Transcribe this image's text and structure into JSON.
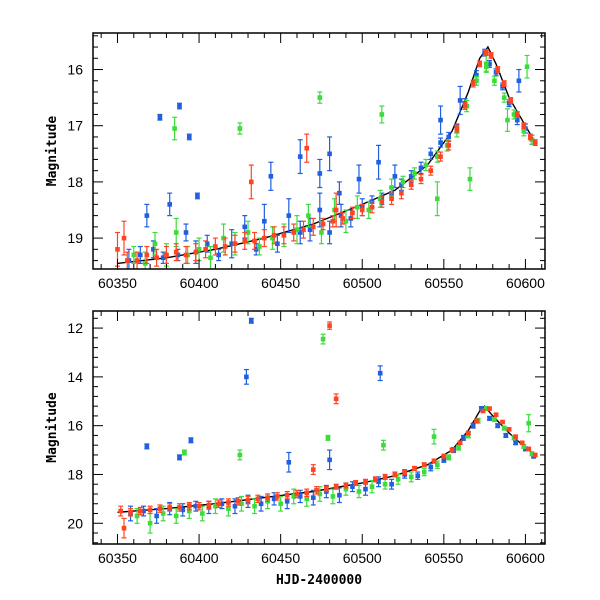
{
  "chart_data": [
    {
      "type": "scatter",
      "title": "",
      "xlabel": "",
      "ylabel": "Magnitude",
      "xlim": [
        60335,
        60612
      ],
      "ylim": [
        19.55,
        15.35
      ],
      "y_inverted": true,
      "grid": false,
      "x_ticks": [
        "60350",
        "60400",
        "60450",
        "60500",
        "60550",
        "60600"
      ],
      "y_ticks": [
        "16",
        "17",
        "18",
        "19"
      ],
      "colors": {
        "blue": "#1f5fe0",
        "green": "#3ddc3d",
        "red": "#ff4422",
        "model": "#000000"
      },
      "model_curve": {
        "x": [
          60350,
          60380,
          60410,
          60440,
          60470,
          60500,
          60520,
          60540,
          60555,
          60565,
          60572,
          60577,
          60582,
          60590,
          60600,
          60606
        ],
        "y": [
          19.45,
          19.35,
          19.2,
          19.0,
          18.75,
          18.4,
          18.15,
          17.7,
          17.1,
          16.4,
          15.8,
          15.6,
          15.9,
          16.5,
          17.0,
          17.3
        ]
      },
      "series": [
        {
          "color": "blue",
          "x": [
            60357,
            60364,
            60368,
            60372,
            60378,
            60382,
            60387,
            60392,
            60398,
            60405,
            60412,
            60420,
            60428,
            60435,
            60440,
            60448,
            60455,
            60462,
            60468,
            60474,
            60480,
            60487,
            60493,
            60500,
            60506,
            60512,
            60518,
            60524,
            60530,
            60536,
            60542,
            60548,
            60553,
            60558,
            60563,
            60570,
            60575,
            60578,
            60582,
            60586,
            60590,
            60595,
            60600,
            60604,
            60376,
            60388,
            60394,
            60399,
            60444,
            60462,
            60474,
            60480,
            60486,
            60498,
            60510,
            60520,
            60548,
            60560,
            60596
          ],
          "y": [
            19.4,
            19.3,
            18.6,
            19.2,
            19.35,
            18.4,
            19.3,
            18.9,
            19.25,
            19.1,
            19.3,
            19.1,
            18.8,
            19.2,
            18.7,
            19.1,
            18.6,
            18.9,
            18.85,
            18.5,
            18.9,
            18.6,
            18.65,
            18.45,
            18.35,
            18.3,
            18.2,
            18.05,
            17.9,
            17.75,
            17.5,
            17.3,
            17.2,
            17.05,
            16.6,
            16.1,
            15.7,
            15.9,
            16.05,
            16.3,
            16.6,
            16.9,
            17.05,
            17.25,
            16.85,
            16.65,
            17.2,
            18.25,
            17.9,
            17.55,
            17.85,
            17.5,
            18.2,
            17.95,
            17.65,
            17.9,
            16.9,
            16.55,
            16.2
          ],
          "err": [
            0.2,
            0.15,
            0.2,
            0.15,
            0.1,
            0.2,
            0.1,
            0.15,
            0.2,
            0.15,
            0.1,
            0.25,
            0.2,
            0.1,
            0.3,
            0.15,
            0.3,
            0.2,
            0.2,
            0.3,
            0.2,
            0.2,
            0.15,
            0.15,
            0.1,
            0.1,
            0.1,
            0.1,
            0.1,
            0.1,
            0.1,
            0.08,
            0.08,
            0.08,
            0.08,
            0.08,
            0.06,
            0.06,
            0.06,
            0.06,
            0.06,
            0.08,
            0.08,
            0.08,
            0.05,
            0.05,
            0.05,
            0.05,
            0.25,
            0.3,
            0.25,
            0.3,
            0.2,
            0.25,
            0.3,
            0.2,
            0.25,
            0.25,
            0.2
          ]
        },
        {
          "color": "green",
          "x": [
            60360,
            60367,
            60373,
            60380,
            60386,
            60393,
            60400,
            60407,
            60415,
            60422,
            60430,
            60437,
            60445,
            60452,
            60460,
            60467,
            60475,
            60483,
            60490,
            60497,
            60504,
            60511,
            60518,
            60525,
            60532,
            60539,
            60546,
            60552,
            60558,
            60564,
            60570,
            60576,
            60581,
            60587,
            60593,
            60599,
            60604,
            60385,
            60425,
            60474,
            60512,
            60546,
            60566,
            60576,
            60589,
            60601
          ],
          "y": [
            19.3,
            19.45,
            19.1,
            19.3,
            18.9,
            19.3,
            19.2,
            19.35,
            19.0,
            19.1,
            18.9,
            19.15,
            19.0,
            18.95,
            18.85,
            18.6,
            18.9,
            18.5,
            18.7,
            18.45,
            18.5,
            18.3,
            18.1,
            18.0,
            17.85,
            17.7,
            17.55,
            17.35,
            17.1,
            16.65,
            16.2,
            15.95,
            16.2,
            16.5,
            16.8,
            17.1,
            17.25,
            17.05,
            17.05,
            16.5,
            16.8,
            18.3,
            17.95,
            15.9,
            16.9,
            15.95
          ],
          "err": [
            0.15,
            0.2,
            0.2,
            0.2,
            0.25,
            0.15,
            0.2,
            0.2,
            0.25,
            0.2,
            0.2,
            0.15,
            0.2,
            0.2,
            0.25,
            0.2,
            0.2,
            0.2,
            0.2,
            0.2,
            0.15,
            0.15,
            0.15,
            0.1,
            0.1,
            0.1,
            0.1,
            0.1,
            0.1,
            0.1,
            0.08,
            0.08,
            0.08,
            0.08,
            0.08,
            0.08,
            0.08,
            0.2,
            0.1,
            0.1,
            0.15,
            0.3,
            0.2,
            0.15,
            0.2,
            0.2
          ]
        },
        {
          "color": "red",
          "x": [
            60350,
            60356,
            60362,
            60368,
            60374,
            60380,
            60386,
            60392,
            60398,
            60404,
            60410,
            60416,
            60422,
            60428,
            60434,
            60440,
            60446,
            60452,
            60458,
            60464,
            60470,
            60476,
            60482,
            60488,
            60494,
            60500,
            60506,
            60512,
            60518,
            60524,
            60530,
            60536,
            60542,
            60548,
            60553,
            60558,
            60563,
            60568,
            60572,
            60576,
            60579,
            60583,
            60587,
            60591,
            60595,
            60599,
            60603,
            60606,
            60354,
            60432,
            60466,
            60484
          ],
          "y": [
            19.2,
            19.4,
            19.4,
            19.3,
            19.35,
            19.3,
            19.25,
            19.3,
            19.25,
            19.2,
            19.15,
            19.15,
            19.1,
            19.05,
            19.05,
            19.0,
            18.95,
            18.95,
            18.9,
            18.85,
            18.8,
            18.75,
            18.7,
            18.65,
            18.55,
            18.5,
            18.45,
            18.35,
            18.3,
            18.2,
            18.05,
            17.95,
            17.8,
            17.55,
            17.35,
            17.05,
            16.65,
            16.25,
            15.9,
            15.7,
            15.75,
            16.0,
            16.25,
            16.55,
            16.8,
            17.0,
            17.2,
            17.3,
            19.0,
            18.0,
            17.4,
            18.5
          ],
          "err": [
            0.3,
            0.15,
            0.15,
            0.15,
            0.15,
            0.15,
            0.15,
            0.15,
            0.15,
            0.15,
            0.15,
            0.15,
            0.15,
            0.15,
            0.15,
            0.15,
            0.15,
            0.15,
            0.15,
            0.15,
            0.15,
            0.1,
            0.1,
            0.1,
            0.1,
            0.1,
            0.1,
            0.1,
            0.1,
            0.1,
            0.08,
            0.08,
            0.08,
            0.08,
            0.08,
            0.06,
            0.06,
            0.06,
            0.05,
            0.05,
            0.05,
            0.05,
            0.05,
            0.05,
            0.05,
            0.05,
            0.05,
            0.05,
            0.3,
            0.3,
            0.25,
            0.3
          ]
        }
      ]
    },
    {
      "type": "scatter",
      "title": "",
      "xlabel": "HJD-2400000",
      "ylabel": "Magnitude",
      "xlim": [
        60335,
        60612
      ],
      "ylim": [
        20.85,
        11.3
      ],
      "y_inverted": true,
      "grid": false,
      "x_ticks": [
        "60350",
        "60400",
        "60450",
        "60500",
        "60550",
        "60600"
      ],
      "y_ticks": [
        "12",
        "14",
        "16",
        "18",
        "20"
      ],
      "colors": {
        "blue": "#1f5fe0",
        "green": "#3ddc3d",
        "red": "#ff4422",
        "model": "#000000"
      },
      "model_curve": {
        "x": [
          60350,
          60380,
          60410,
          60440,
          60470,
          60500,
          60520,
          60540,
          60555,
          60565,
          60572,
          60575,
          60580,
          60590,
          60600,
          60606
        ],
        "y": [
          19.55,
          19.4,
          19.2,
          18.95,
          18.7,
          18.35,
          18.05,
          17.6,
          17.0,
          16.2,
          15.4,
          15.2,
          15.6,
          16.3,
          16.9,
          17.2
        ]
      },
      "series": [
        {
          "color": "blue",
          "x": [
            60358,
            60366,
            60374,
            60382,
            60390,
            60398,
            60406,
            60414,
            60422,
            60430,
            60438,
            60446,
            60454,
            60462,
            60470,
            60478,
            60486,
            60494,
            60502,
            60510,
            60518,
            60526,
            60534,
            60542,
            60550,
            60556,
            60562,
            60568,
            60573,
            60578,
            60583,
            60588,
            60594,
            60600,
            60605,
            60368,
            60388,
            60395,
            60432,
            60429,
            60511,
            60455,
            60480
          ],
          "y": [
            19.6,
            19.5,
            19.7,
            19.4,
            19.45,
            19.3,
            19.35,
            19.2,
            19.3,
            19.1,
            19.2,
            19.0,
            19.1,
            18.9,
            18.95,
            18.7,
            18.85,
            18.5,
            18.6,
            18.3,
            18.4,
            18.0,
            18.05,
            17.7,
            17.4,
            17.0,
            16.5,
            16.0,
            15.3,
            15.7,
            16.0,
            16.4,
            16.7,
            16.95,
            17.25,
            16.85,
            17.3,
            16.6,
            11.7,
            14.0,
            13.85,
            17.5,
            17.4
          ],
          "err": [
            0.3,
            0.2,
            0.3,
            0.25,
            0.25,
            0.2,
            0.25,
            0.2,
            0.3,
            0.25,
            0.3,
            0.25,
            0.3,
            0.25,
            0.3,
            0.25,
            0.3,
            0.2,
            0.25,
            0.2,
            0.2,
            0.15,
            0.15,
            0.15,
            0.1,
            0.1,
            0.1,
            0.1,
            0.08,
            0.08,
            0.08,
            0.08,
            0.08,
            0.08,
            0.08,
            0.1,
            0.1,
            0.1,
            0.1,
            0.3,
            0.3,
            0.4,
            0.4
          ]
        },
        {
          "color": "green",
          "x": [
            60362,
            60370,
            60378,
            60386,
            60394,
            60402,
            60410,
            60418,
            60426,
            60434,
            60442,
            60450,
            60458,
            60466,
            60474,
            60482,
            60490,
            60498,
            60506,
            60514,
            60522,
            60530,
            60538,
            60546,
            60553,
            60559,
            60565,
            60571,
            60576,
            60581,
            60587,
            60593,
            60599,
            60604,
            60476,
            60479,
            60513,
            60544,
            60391,
            60425,
            60602
          ],
          "y": [
            19.7,
            20.0,
            19.6,
            19.7,
            19.5,
            19.6,
            19.3,
            19.4,
            19.2,
            19.3,
            19.1,
            19.2,
            18.9,
            19.0,
            18.8,
            18.9,
            18.6,
            18.7,
            18.5,
            18.4,
            18.2,
            18.1,
            17.9,
            17.6,
            17.3,
            16.9,
            16.4,
            15.8,
            15.3,
            15.75,
            16.1,
            16.5,
            16.85,
            17.15,
            12.45,
            16.5,
            16.8,
            16.45,
            17.1,
            17.2,
            15.9
          ],
          "err": [
            0.3,
            0.4,
            0.3,
            0.3,
            0.3,
            0.3,
            0.3,
            0.3,
            0.3,
            0.3,
            0.3,
            0.3,
            0.3,
            0.3,
            0.3,
            0.3,
            0.25,
            0.25,
            0.25,
            0.2,
            0.2,
            0.2,
            0.15,
            0.15,
            0.1,
            0.1,
            0.1,
            0.1,
            0.08,
            0.08,
            0.08,
            0.08,
            0.08,
            0.08,
            0.2,
            0.1,
            0.2,
            0.3,
            0.1,
            0.2,
            0.35
          ]
        },
        {
          "color": "red",
          "x": [
            60352,
            60358,
            60364,
            60370,
            60376,
            60382,
            60388,
            60394,
            60400,
            60406,
            60412,
            60418,
            60424,
            60430,
            60436,
            60442,
            60448,
            60454,
            60460,
            60466,
            60472,
            60478,
            60484,
            60490,
            60496,
            60502,
            60508,
            60514,
            60520,
            60526,
            60532,
            60538,
            60544,
            60550,
            60555,
            60560,
            60565,
            60570,
            60574,
            60578,
            60582,
            60586,
            60590,
            60594,
            60598,
            60602,
            60606,
            60354,
            60480,
            60484,
            60470
          ],
          "y": [
            19.5,
            19.55,
            19.5,
            19.45,
            19.4,
            19.35,
            19.35,
            19.3,
            19.3,
            19.25,
            19.2,
            19.15,
            19.1,
            19.05,
            19.0,
            18.95,
            18.9,
            18.85,
            18.8,
            18.75,
            18.65,
            18.6,
            18.5,
            18.45,
            18.35,
            18.3,
            18.2,
            18.1,
            18.0,
            17.9,
            17.75,
            17.6,
            17.45,
            17.25,
            17.0,
            16.7,
            16.3,
            15.8,
            15.4,
            15.3,
            15.55,
            15.85,
            16.15,
            16.45,
            16.7,
            16.95,
            17.2,
            20.2,
            11.9,
            14.9,
            17.8
          ],
          "err": [
            0.2,
            0.15,
            0.15,
            0.15,
            0.15,
            0.15,
            0.15,
            0.15,
            0.15,
            0.15,
            0.15,
            0.15,
            0.15,
            0.15,
            0.15,
            0.15,
            0.15,
            0.15,
            0.15,
            0.15,
            0.15,
            0.1,
            0.1,
            0.1,
            0.1,
            0.1,
            0.1,
            0.1,
            0.1,
            0.1,
            0.08,
            0.08,
            0.08,
            0.08,
            0.08,
            0.06,
            0.06,
            0.06,
            0.05,
            0.05,
            0.05,
            0.05,
            0.05,
            0.05,
            0.05,
            0.05,
            0.05,
            0.4,
            0.15,
            0.2,
            0.2
          ]
        }
      ]
    }
  ]
}
